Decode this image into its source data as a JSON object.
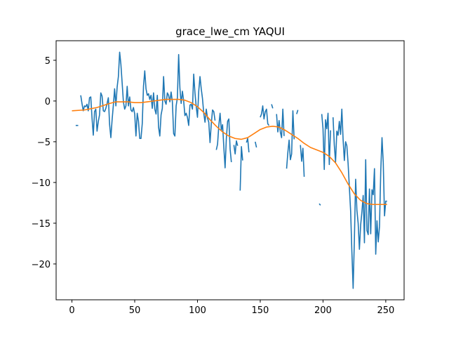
{
  "chart_data": {
    "type": "line",
    "title": "grace_lwe_cm YAQUI",
    "xlabel": "",
    "ylabel": "",
    "xlim": [
      -12.6,
      264.6
    ],
    "ylim": [
      -24.4,
      7.4
    ],
    "xticks": [
      0,
      50,
      100,
      150,
      200,
      250
    ],
    "yticks": [
      -20,
      -15,
      -10,
      -5,
      0,
      5
    ],
    "grid": false,
    "legend": "none",
    "colors": {
      "raw": "#1f77b4",
      "smooth": "#ff7f0e"
    },
    "series": [
      {
        "key": "raw",
        "segments": [
          [
            [
              3,
              -3.0
            ],
            [
              5,
              -3.0
            ]
          ],
          [
            [
              7,
              0.7
            ],
            [
              8,
              -0.3
            ],
            [
              9,
              -1.2
            ],
            [
              10,
              -0.6
            ],
            [
              11,
              -0.7
            ],
            [
              12,
              -0.4
            ],
            [
              13,
              -1.2
            ],
            [
              14,
              0.4
            ],
            [
              15,
              0.5
            ],
            [
              16,
              -2.1
            ],
            [
              17,
              -4.2
            ],
            [
              18,
              -1.3
            ],
            [
              19,
              -1.0
            ],
            [
              20,
              -3.7
            ],
            [
              21,
              -2.5
            ],
            [
              22,
              -1.7
            ],
            [
              23,
              1.0
            ],
            [
              24,
              0.6
            ],
            [
              25,
              -1.2
            ],
            [
              26,
              -1.3
            ],
            [
              27,
              -0.9
            ],
            [
              28,
              -0.3
            ],
            [
              29,
              0.4
            ],
            [
              30,
              -2.9
            ],
            [
              31,
              -4.5
            ],
            [
              32,
              -2.3
            ],
            [
              33,
              -0.5
            ],
            [
              34,
              1.5
            ],
            [
              35,
              -0.6
            ],
            [
              36,
              1.7
            ],
            [
              37,
              3.0
            ],
            [
              38,
              6.0
            ],
            [
              39,
              4.5
            ],
            [
              40,
              2.2
            ],
            [
              41,
              -0.1
            ],
            [
              42,
              -1.0
            ],
            [
              43,
              -0.6
            ],
            [
              44,
              1.8
            ],
            [
              45,
              -0.6
            ],
            [
              46,
              0.5
            ],
            [
              47,
              -1.1
            ],
            [
              48,
              -1.3
            ],
            [
              49,
              -0.8
            ],
            [
              50,
              -1.6
            ],
            [
              51,
              -4.3
            ],
            [
              52,
              -1.5
            ],
            [
              53,
              -2.5
            ],
            [
              54,
              -4.6
            ],
            [
              55,
              -4.6
            ],
            [
              56,
              -2.8
            ],
            [
              57,
              1.8
            ],
            [
              58,
              3.7
            ],
            [
              59,
              1.5
            ],
            [
              60,
              0.7
            ],
            [
              61,
              0.9
            ],
            [
              62,
              0.2
            ],
            [
              63,
              0.7
            ],
            [
              64,
              -0.9
            ],
            [
              65,
              1.0
            ],
            [
              66,
              -1.0
            ],
            [
              67,
              -1.6
            ],
            [
              68,
              0.7
            ],
            [
              69,
              -3.2
            ],
            [
              70,
              -4.3
            ],
            [
              71,
              -1.7
            ],
            [
              72,
              -0.9
            ],
            [
              73,
              3.0
            ],
            [
              74,
              0.0
            ],
            [
              75,
              -0.4
            ],
            [
              76,
              1.0
            ],
            [
              77,
              0.7
            ],
            [
              78,
              -0.1
            ],
            [
              79,
              1.1
            ],
            [
              80,
              -0.1
            ],
            [
              81,
              -4.0
            ],
            [
              82,
              -4.3
            ],
            [
              83,
              -0.6
            ],
            [
              84,
              0.4
            ],
            [
              85,
              5.7
            ],
            [
              86,
              1.6
            ],
            [
              87,
              -0.3
            ],
            [
              88,
              1.2
            ],
            [
              89,
              0.0
            ],
            [
              90,
              -1.8
            ],
            [
              91,
              -1.5
            ],
            [
              92,
              -2.0
            ],
            [
              93,
              -3.0
            ],
            [
              94,
              -0.5
            ],
            [
              95,
              -0.4
            ],
            [
              96,
              -1.0
            ],
            [
              97,
              3.3
            ],
            [
              98,
              1.0
            ],
            [
              99,
              -0.7
            ],
            [
              100,
              -2.0
            ],
            [
              101,
              1.2
            ],
            [
              102,
              3.0
            ],
            [
              103,
              1.5
            ],
            [
              104,
              0.3
            ],
            [
              105,
              -1.5
            ],
            [
              106,
              -2.6
            ],
            [
              107,
              -1.0
            ],
            [
              108,
              -2.1
            ],
            [
              109,
              -2.6
            ],
            [
              110,
              -5.1
            ],
            [
              111,
              -2.8
            ],
            [
              112,
              -1.1
            ],
            [
              113,
              -1.3
            ],
            [
              114,
              -2.4
            ]
          ],
          [
            [
              115,
              -6.0
            ],
            [
              116,
              -5.3
            ],
            [
              117,
              -3.0
            ],
            [
              118,
              -1.5
            ],
            [
              119,
              -3.6
            ],
            [
              120,
              -2.9
            ],
            [
              121,
              -5.7
            ],
            [
              122,
              -8.2
            ],
            [
              123,
              -4.6
            ],
            [
              124,
              -2.5
            ],
            [
              125,
              -2.2
            ],
            [
              126,
              -5.9
            ],
            [
              127,
              -7.5
            ]
          ],
          [
            [
              129,
              -5.4
            ],
            [
              130,
              -6.5
            ],
            [
              131,
              -4.9
            ],
            [
              132,
              -5.5
            ]
          ],
          [
            [
              134,
              -11.0
            ],
            [
              135,
              -5.6
            ],
            [
              136,
              -7.3
            ]
          ],
          [
            [
              139,
              -5.1
            ],
            [
              140,
              -4.6
            ],
            [
              141,
              -6.3
            ]
          ],
          [
            [
              146,
              -5.0
            ],
            [
              147,
              -5.7
            ]
          ],
          [
            [
              150,
              -2.0
            ],
            [
              151,
              -1.6
            ],
            [
              152,
              -0.6
            ],
            [
              153,
              -2.2
            ],
            [
              154,
              -1.3
            ],
            [
              155,
              -1.0
            ],
            [
              156,
              -2.8
            ],
            [
              157,
              -3.0
            ]
          ],
          [
            [
              159,
              -0.4
            ],
            [
              160,
              -0.9
            ]
          ],
          [
            [
              163,
              -1.6
            ],
            [
              164,
              -3.8
            ],
            [
              165,
              -2.4
            ],
            [
              166,
              -3.8
            ],
            [
              167,
              -4.5
            ],
            [
              168,
              -1.0
            ],
            [
              169,
              -4.3
            ]
          ],
          [
            [
              171,
              -8.3
            ],
            [
              172,
              -6.3
            ],
            [
              173,
              -4.8
            ],
            [
              174,
              -7.2
            ],
            [
              175,
              -6.5
            ],
            [
              176,
              -1.2
            ],
            [
              177,
              -4.7
            ]
          ],
          [
            [
              179,
              -1.6
            ],
            [
              180,
              -1.1
            ]
          ],
          [
            [
              182,
              -5.4
            ],
            [
              183,
              -7.4
            ],
            [
              184,
              -5.8
            ],
            [
              185,
              -9.3
            ]
          ],
          [
            [
              197,
              -12.6
            ],
            [
              198,
              -12.8
            ]
          ],
          [
            [
              199,
              -1.6
            ],
            [
              200,
              -3.4
            ],
            [
              201,
              -8.4
            ],
            [
              202,
              -2.3
            ],
            [
              203,
              -3.4
            ],
            [
              204,
              -1.5
            ],
            [
              205,
              -7.8
            ],
            [
              206,
              -3.6
            ]
          ],
          [
            [
              208,
              -2.0
            ],
            [
              209,
              -5.4
            ],
            [
              210,
              -7.5
            ],
            [
              211,
              -3.7
            ],
            [
              212,
              -4.2
            ],
            [
              213,
              -2.5
            ],
            [
              214,
              -4.1
            ],
            [
              215,
              -1.0
            ],
            [
              216,
              -4.7
            ],
            [
              217,
              -7.3
            ],
            [
              218,
              -5.0
            ],
            [
              219,
              -5.5
            ],
            [
              220,
              -7.7
            ],
            [
              221,
              -10.6
            ],
            [
              222,
              -13.5
            ],
            [
              223,
              -18.5
            ],
            [
              224,
              -23.0
            ],
            [
              225,
              -17.0
            ],
            [
              226,
              -9.6
            ],
            [
              227,
              -13.4
            ],
            [
              228,
              -15.0
            ],
            [
              229,
              -18.2
            ],
            [
              230,
              -15.2
            ],
            [
              231,
              -13.6
            ],
            [
              232,
              -11.6
            ],
            [
              233,
              -17.4
            ],
            [
              234,
              -7.2
            ],
            [
              235,
              -15.9
            ],
            [
              236,
              -16.4
            ],
            [
              237,
              -10.8
            ],
            [
              238,
              -16.3
            ],
            [
              239,
              -10.9
            ],
            [
              240,
              -11.5
            ],
            [
              241,
              -8.3
            ],
            [
              242,
              -18.8
            ],
            [
              243,
              -14.7
            ],
            [
              244,
              -17.3
            ],
            [
              245,
              -15.4
            ],
            [
              246,
              -8.6
            ],
            [
              247,
              -4.5
            ],
            [
              248,
              -7.6
            ],
            [
              249,
              -14.1
            ],
            [
              250,
              -12.3
            ],
            [
              251,
              -12.3
            ]
          ]
        ]
      },
      {
        "key": "smooth",
        "points": [
          [
            0,
            -1.2
          ],
          [
            10,
            -1.1
          ],
          [
            20,
            -0.8
          ],
          [
            30,
            -0.3
          ],
          [
            35,
            -0.1
          ],
          [
            40,
            -0.1
          ],
          [
            45,
            -0.1
          ],
          [
            50,
            -0.2
          ],
          [
            55,
            -0.2
          ],
          [
            60,
            -0.1
          ],
          [
            65,
            0.0
          ],
          [
            70,
            0.1
          ],
          [
            75,
            0.2
          ],
          [
            80,
            0.2
          ],
          [
            85,
            0.2
          ],
          [
            90,
            0.1
          ],
          [
            95,
            -0.2
          ],
          [
            100,
            -0.7
          ],
          [
            105,
            -1.4
          ],
          [
            110,
            -2.3
          ],
          [
            115,
            -3.1
          ],
          [
            120,
            -3.8
          ],
          [
            125,
            -4.3
          ],
          [
            130,
            -4.6
          ],
          [
            135,
            -4.7
          ],
          [
            140,
            -4.5
          ],
          [
            145,
            -4.0
          ],
          [
            150,
            -3.5
          ],
          [
            155,
            -3.2
          ],
          [
            160,
            -3.1
          ],
          [
            165,
            -3.2
          ],
          [
            170,
            -3.6
          ],
          [
            175,
            -4.1
          ],
          [
            180,
            -4.6
          ],
          [
            185,
            -5.2
          ],
          [
            190,
            -5.7
          ],
          [
            195,
            -6.0
          ],
          [
            200,
            -6.3
          ],
          [
            205,
            -6.8
          ],
          [
            210,
            -7.6
          ],
          [
            215,
            -8.8
          ],
          [
            220,
            -10.2
          ],
          [
            225,
            -11.4
          ],
          [
            230,
            -12.2
          ],
          [
            235,
            -12.6
          ],
          [
            240,
            -12.7
          ],
          [
            245,
            -12.7
          ],
          [
            250,
            -12.7
          ],
          [
            251,
            -12.7
          ]
        ]
      }
    ]
  }
}
